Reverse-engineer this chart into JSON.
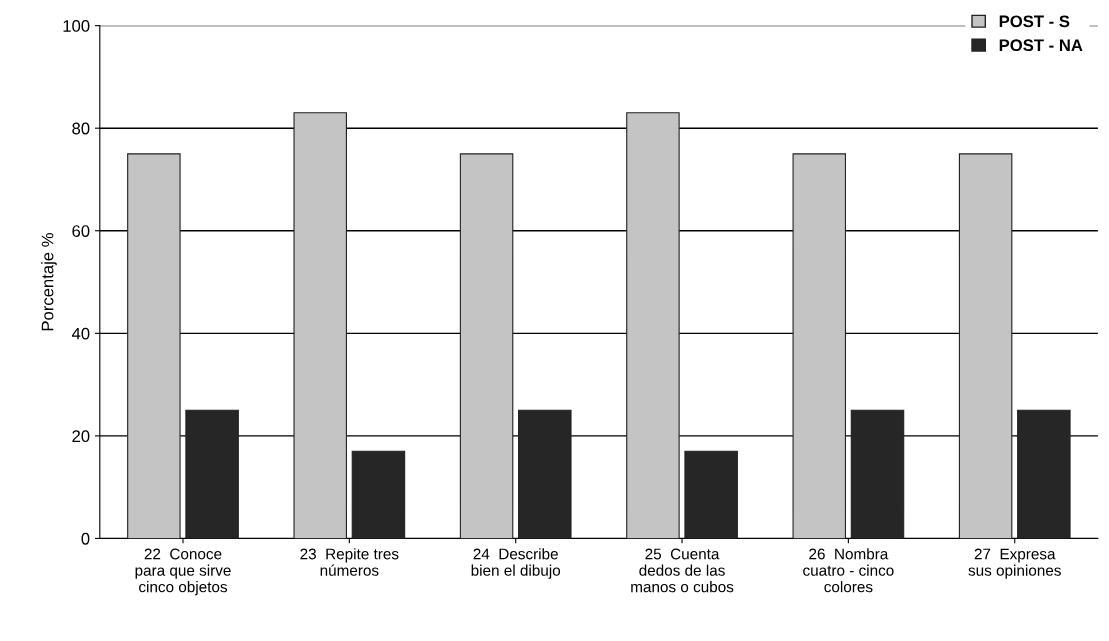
{
  "chart_data": {
    "type": "bar",
    "ylabel": "Porcentaje %",
    "categories": [
      "22  Conoce\npara que sirve\ncinco objetos",
      "23  Repite tres\nnúmeros",
      "24  Describe\nbien el dibujo",
      "25  Cuenta\ndedos de las\nmanos o cubos",
      "26  Nombra\ncuatro - cinco\ncolores",
      "27  Expresa\nsus opiniones"
    ],
    "series": [
      {
        "name": "POST - S",
        "color": "#c4c4c4",
        "values": [
          75,
          83,
          75,
          83,
          75,
          75
        ]
      },
      {
        "name": "POST - NA",
        "color": "#262626",
        "values": [
          25,
          17,
          25,
          17,
          25,
          25
        ]
      }
    ],
    "ylim": [
      0,
      100
    ],
    "yticks": [
      0,
      20,
      40,
      60,
      80,
      100
    ],
    "grid": "y",
    "legend": "top right"
  }
}
